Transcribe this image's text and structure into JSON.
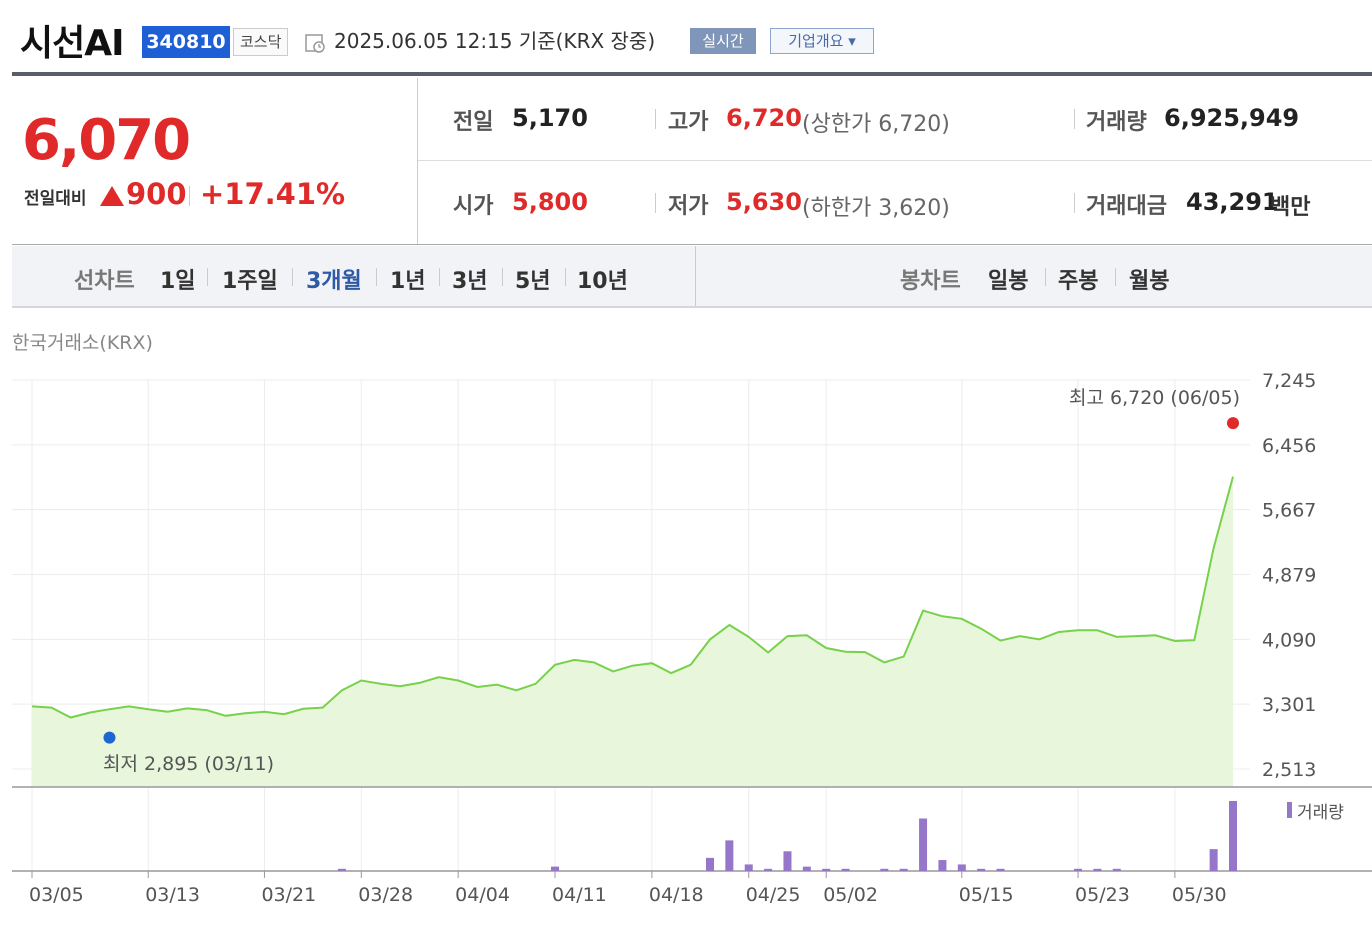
{
  "header": {
    "stock_name": "시선AI",
    "code": "340810",
    "market": "코스닥",
    "timestamp": "2025.06.05 12:15  기준(KRX 장중)",
    "realtime_label": "실시간",
    "overview_label": "기업개요 ▾"
  },
  "price": {
    "current": "6,070",
    "change_label": "전일대비",
    "change": "900",
    "change_pct": "+17.41%",
    "direction": "up"
  },
  "stats": {
    "prev_close": {
      "label": "전일",
      "value": "5,170"
    },
    "open": {
      "label": "시가",
      "value": "5,800"
    },
    "high": {
      "label": "고가",
      "value": "6,720",
      "sub": "(상한가 6,720)"
    },
    "low": {
      "label": "저가",
      "value": "5,630",
      "sub": "(하한가 3,620)"
    },
    "volume": {
      "label": "거래량",
      "value": "6,925,949"
    },
    "amount": {
      "label": "거래대금",
      "value": "43,291",
      "unit": "백만"
    }
  },
  "periods": {
    "line_label": "선차트",
    "line_items": [
      "1일",
      "1주일",
      "3개월",
      "1년",
      "3년",
      "5년",
      "10년"
    ],
    "active": "3개월",
    "candle_label": "봉차트",
    "candle_items": [
      "일봉",
      "주봉",
      "월봉"
    ]
  },
  "exchange_label": "한국거래소(KRX)",
  "colors": {
    "up": "#e02a2a",
    "line": "#77d14a",
    "fill": "#e8f7dc",
    "volume": "#9576c9",
    "low": "#1f66d1",
    "active_tab": "#2e5aa6"
  },
  "chart_data": {
    "type": "area",
    "y_ticks": [
      "7,245",
      "6,456",
      "5,667",
      "4,879",
      "4,090",
      "3,301",
      "2,513"
    ],
    "ylim": [
      2513,
      7245
    ],
    "x_ticks": [
      "03/05",
      "03/13",
      "03/21",
      "03/28",
      "04/04",
      "04/11",
      "04/18",
      "04/25",
      "05/02",
      "05/15",
      "05/23",
      "05/30"
    ],
    "x_tick_index": [
      0,
      6,
      12,
      17,
      22,
      27,
      32,
      37,
      41,
      48,
      54,
      59
    ],
    "series": [
      {
        "values": [
          3275,
          3260,
          3140,
          3200,
          3240,
          3275,
          3240,
          3210,
          3250,
          3230,
          3160,
          3190,
          3210,
          3180,
          3245,
          3260,
          3470,
          3590,
          3550,
          3520,
          3560,
          3630,
          3590,
          3510,
          3540,
          3470,
          3550,
          3780,
          3840,
          3810,
          3700,
          3770,
          3800,
          3680,
          3780,
          4090,
          4265,
          4120,
          3930,
          4130,
          4140,
          3985,
          3940,
          3935,
          3810,
          3880,
          4440,
          4370,
          4340,
          4220,
          4075,
          4130,
          4090,
          4180,
          4200,
          4200,
          4120,
          4130,
          4140,
          4070,
          4080,
          5200,
          6070
        ]
      }
    ],
    "volume_label": "거래량",
    "volume": [
      0,
      0,
      0,
      0,
      0,
      0,
      0,
      0,
      0,
      0,
      0,
      0,
      0,
      0,
      0,
      0,
      0.2,
      0,
      0,
      0,
      0,
      0,
      0,
      0,
      0,
      0,
      0,
      0.4,
      0,
      0,
      0,
      0,
      0,
      0,
      0,
      1.2,
      2.8,
      0.6,
      0.2,
      1.8,
      0.4,
      0.2,
      0.2,
      0,
      0.2,
      0.2,
      4.8,
      1.0,
      0.6,
      0.2,
      0.2,
      0,
      0,
      0,
      0.2,
      0.2,
      0.2,
      0,
      0,
      0,
      0,
      2.0,
      6.4
    ],
    "high_annotation": "최고 6,720 (06/05)",
    "high_value": 6720,
    "low_annotation": "최저 2,895 (03/11)",
    "low_value": 2895,
    "low_index": 4
  }
}
